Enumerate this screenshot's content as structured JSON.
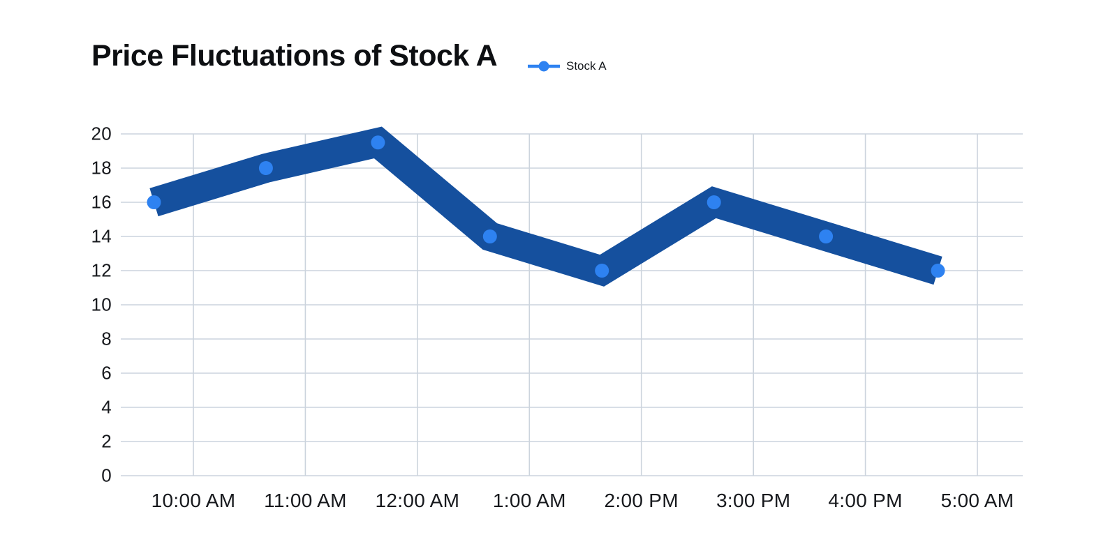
{
  "page": {
    "background": "#ffffff"
  },
  "chart_data": {
    "type": "line",
    "title": "Price Fluctuations of Stock A",
    "categories": [
      "10:00 AM",
      "11:00 AM",
      "12:00 AM",
      "1:00 AM",
      "2:00 PM",
      "3:00 PM",
      "4:00 PM",
      "5:00 AM"
    ],
    "series": [
      {
        "name": "Stock A",
        "values": [
          16,
          18,
          19.5,
          14,
          12,
          16,
          14,
          12
        ]
      }
    ],
    "xlabel": "",
    "ylabel": "",
    "ylim": [
      0,
      20
    ],
    "yticks": [
      0,
      2,
      4,
      6,
      8,
      10,
      12,
      14,
      16,
      18,
      20
    ],
    "grid": true,
    "legend_position": "top, right of title",
    "colors": {
      "line": "#15509e",
      "marker": "#2e82f1",
      "grid": "#ccd4dd",
      "tick_text": "#17191d",
      "title_text": "#0d0f12"
    }
  }
}
